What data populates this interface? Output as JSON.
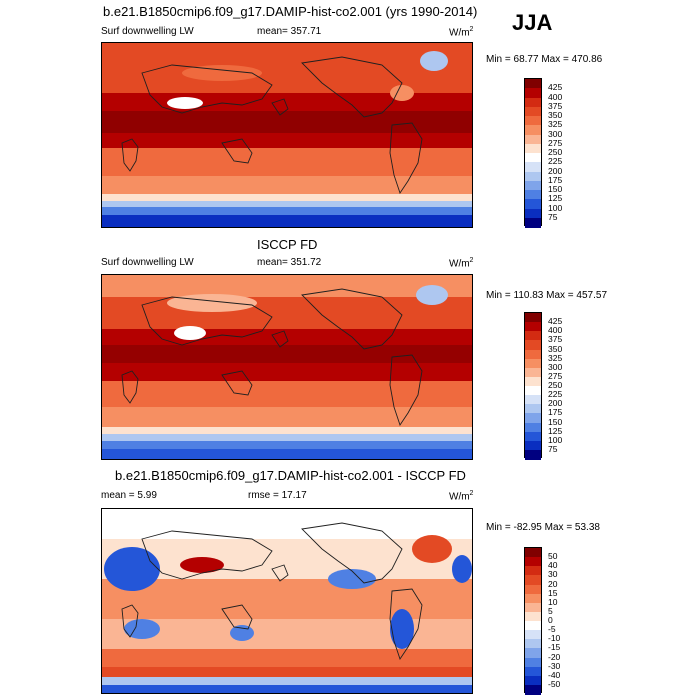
{
  "season": "JJA",
  "panels": [
    {
      "title": "b.e21.B1850cmip6.f09_g17.DAMIP-hist-co2.001 (yrs 1990-2014)",
      "left": "Surf downwelling LW",
      "center": "mean= 357.71",
      "units_base": "W/m",
      "units_exp": "2",
      "minmax": "Min =  68.77 Max = 470.86",
      "kind": "abs"
    },
    {
      "title": "ISCCP FD",
      "left": "Surf downwelling LW",
      "center": "mean= 351.72",
      "units_base": "W/m",
      "units_exp": "2",
      "minmax": "Min = 110.83 Max = 457.57",
      "kind": "abs"
    },
    {
      "title": "b.e21.B1850cmip6.f09_g17.DAMIP-hist-co2.001 - ISCCP FD",
      "left": "mean =  5.99",
      "center": "rmse =  17.17",
      "units_base": "W/m",
      "units_exp": "2",
      "minmax": "Min = -82.95 Max =  53.38",
      "kind": "diff"
    }
  ],
  "colorbar_abs": {
    "labels": [
      "425",
      "400",
      "375",
      "350",
      "325",
      "300",
      "275",
      "250",
      "225",
      "200",
      "175",
      "150",
      "125",
      "100",
      "75"
    ],
    "colors": [
      "#800000",
      "#b40000",
      "#d32b12",
      "#e34a24",
      "#ef6a3e",
      "#f68f62",
      "#fab594",
      "#fde2cf",
      "#ffffff",
      "#d6e2f7",
      "#aec7f0",
      "#7fa4ea",
      "#4f80e3",
      "#2456d8",
      "#0a2ec0",
      "#000080"
    ]
  },
  "colorbar_diff": {
    "labels": [
      "50",
      "40",
      "30",
      "20",
      "15",
      "10",
      "5",
      "0",
      "-5",
      "-10",
      "-15",
      "-20",
      "-30",
      "-40",
      "-50"
    ],
    "colors": [
      "#800000",
      "#b40000",
      "#d32b12",
      "#e34a24",
      "#ef6a3e",
      "#f68f62",
      "#fab594",
      "#fde2cf",
      "#ffffff",
      "#d6e2f7",
      "#aec7f0",
      "#7fa4ea",
      "#4f80e3",
      "#2456d8",
      "#0a2ec0",
      "#000080"
    ]
  }
}
